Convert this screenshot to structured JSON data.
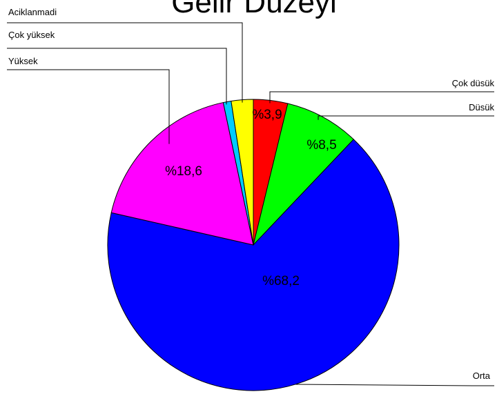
{
  "chart_data": {
    "type": "pie",
    "title": "Gelir Düzeyi",
    "slices": [
      {
        "name": "Çok düsük",
        "value": 3.9,
        "label": "%3,9",
        "color": "#ff0000"
      },
      {
        "name": "Düsük",
        "value": 8.5,
        "label": "%8,5",
        "color": "#00ff00"
      },
      {
        "name": "Orta",
        "value": 68.2,
        "label": "%68,2",
        "color": "#0000ff"
      },
      {
        "name": "Yüksek",
        "value": 18.6,
        "label": "%18,6",
        "color": "#ff00ff"
      },
      {
        "name": "Çok yüksek",
        "value": 0.9,
        "label": "",
        "color": "#00ccff"
      },
      {
        "name": "Aciklanmadi",
        "value": 2.5,
        "label": "",
        "color": "#ffff00"
      }
    ]
  }
}
